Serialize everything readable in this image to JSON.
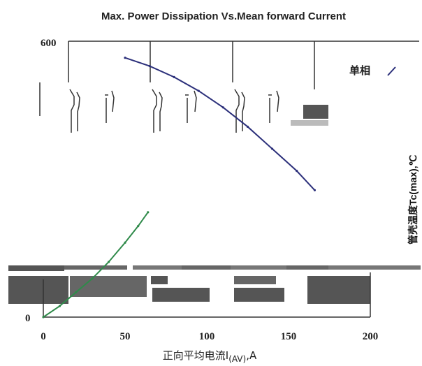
{
  "chart_data": {
    "type": "line",
    "title": "Max. Power Dissipation Vs.Mean forward Current",
    "xlabel_prefix": "正向平均电流I",
    "xlabel_sub": "(AV)",
    "xlabel_suffix": ",A",
    "right_axis_label": "管壳温度Tc(max),℃",
    "legend_label": "单相",
    "y_top_tick": "600",
    "y_zero_tick": "0",
    "xlim": [
      0,
      200
    ],
    "x_ticks": [
      {
        "value": 0,
        "label": "0"
      },
      {
        "value": 50,
        "label": "50"
      },
      {
        "value": 100,
        "label": "100"
      },
      {
        "value": 150,
        "label": "150"
      },
      {
        "value": 200,
        "label": "200"
      }
    ],
    "series": [
      {
        "color": "#2b2f7a",
        "x": [
          50,
          65,
          80,
          95,
          110,
          125,
          140,
          155,
          166
        ],
        "y": [
          0.94,
          0.91,
          0.87,
          0.82,
          0.76,
          0.69,
          0.61,
          0.53,
          0.46
        ]
      },
      {
        "color": "#2f8a4a",
        "x": [
          0,
          10,
          20,
          30,
          40,
          50,
          58,
          64
        ],
        "y": [
          0,
          0.04,
          0.09,
          0.14,
          0.2,
          0.27,
          0.33,
          0.38
        ]
      }
    ]
  }
}
